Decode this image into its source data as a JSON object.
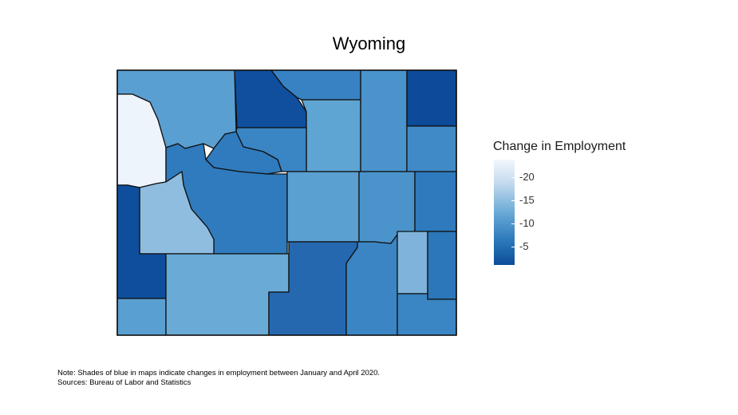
{
  "title": "Wyoming",
  "legend": {
    "title": "Change in Employment",
    "ticks": [
      "-20",
      "-15",
      "-10",
      "-5"
    ],
    "colors": {
      "low": "#0c4d9a",
      "high": "#f3f7fd"
    }
  },
  "note": {
    "line1": "Note: Shades of blue in maps indicate changes in employment between January and April 2020.",
    "line2": "Sources: Bureau of Labor and Statistics"
  },
  "counties": {
    "park": "#5a9fd1",
    "big-horn": "#0f4f9e",
    "sheridan": "#3882c3",
    "johnson": "#5ea5d3",
    "campbell": "#4a93cb",
    "crook": "#0d4a97",
    "weston": "#408bc7",
    "teton": "#eef4fc",
    "hot-springs": "#2f7bbd",
    "washakie": "#3a85c4",
    "fremont": "#2f7bbd",
    "natrona": "#5aa0d1",
    "converse": "#4a94cb",
    "niobrara": "#2e7abd",
    "lincoln": "#0e4e9d",
    "sublette": "#8fbde0",
    "platte": "#7fb3db",
    "goshen": "#2c76ba",
    "uinta": "#5a9fd1",
    "sweetwater": "#6aaad6",
    "carbon": "#2568b0",
    "albany": "#3b85c4",
    "laramie": "#3a85c4"
  }
}
